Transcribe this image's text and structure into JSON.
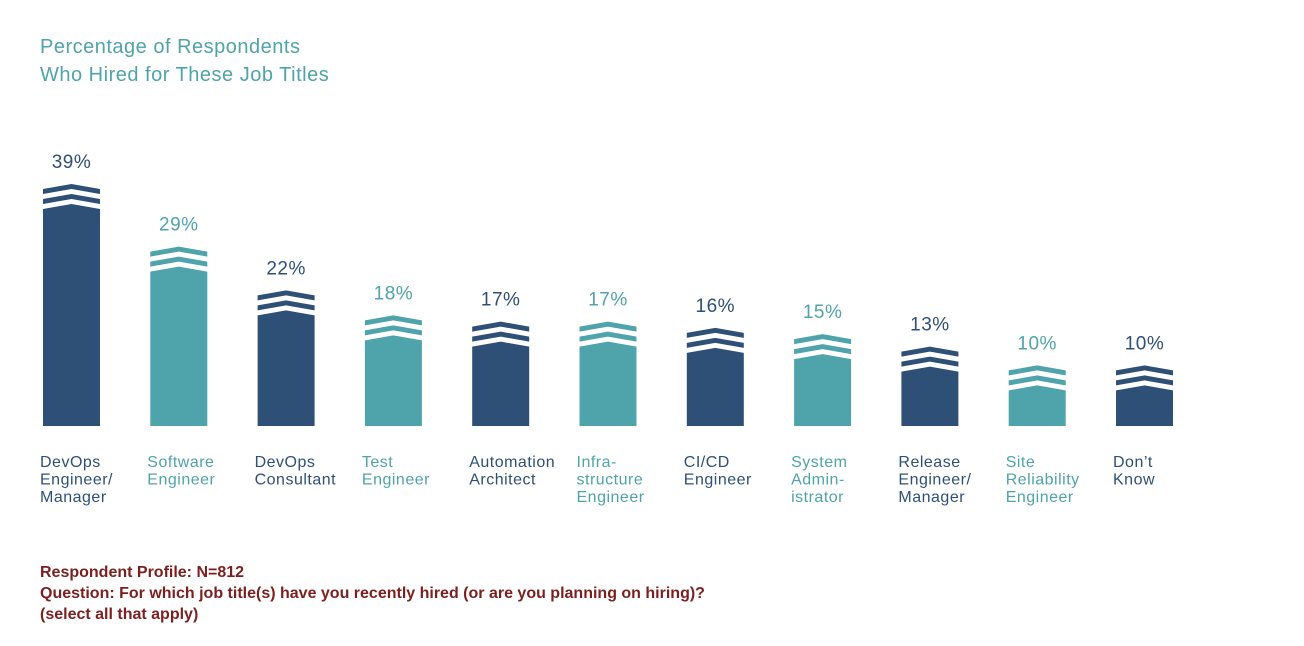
{
  "title_lines": [
    "Percentage of Respondents",
    "Who Hired for These Job Titles"
  ],
  "colors": {
    "dark": "#2e5077",
    "teal": "#4fa3ab",
    "title": "#4fa3ab",
    "footer": "#7b1f1f"
  },
  "chart_data": {
    "type": "bar",
    "title": "Percentage of Respondents Who Hired for These Job Titles",
    "unit": "%",
    "categories": [
      "DevOps Engineer/ Manager",
      "Software Engineer",
      "DevOps Consultant",
      "Test Engineer",
      "Automation Architect",
      "Infra- structure Engineer",
      "CI/CD Engineer",
      "System Admin- istrator",
      "Release Engineer/ Manager",
      "Site Reliability Engineer",
      "Don’t Know"
    ],
    "category_lines": [
      [
        "DevOps",
        "Engineer/",
        "Manager"
      ],
      [
        "Software",
        "Engineer"
      ],
      [
        "DevOps",
        "Consultant"
      ],
      [
        "Test",
        "Engineer"
      ],
      [
        "Automation",
        "Architect"
      ],
      [
        "Infra-",
        "structure",
        "Engineer"
      ],
      [
        "CI/CD",
        "Engineer"
      ],
      [
        "System",
        "Admin-",
        "istrator"
      ],
      [
        "Release",
        "Engineer/",
        "Manager"
      ],
      [
        "Site",
        "Reliability",
        "Engineer"
      ],
      [
        "Don’t",
        "Know"
      ]
    ],
    "values": [
      39,
      29,
      22,
      18,
      17,
      17,
      16,
      15,
      13,
      10,
      10
    ],
    "labels": [
      "39%",
      "29%",
      "22%",
      "18%",
      "17%",
      "17%",
      "16%",
      "15%",
      "13%",
      "10%",
      "10%"
    ],
    "color_pattern": [
      "dark",
      "teal",
      "dark",
      "teal",
      "dark",
      "teal",
      "dark",
      "teal",
      "dark",
      "teal",
      "dark"
    ],
    "ylim": [
      0,
      40
    ],
    "grid": false,
    "legend": "none"
  },
  "footer": {
    "profile": "Respondent Profile: N=812",
    "question": "Question: For which job title(s) have you recently hired (or are you planning on hiring)?",
    "note": "(select all that apply)"
  }
}
